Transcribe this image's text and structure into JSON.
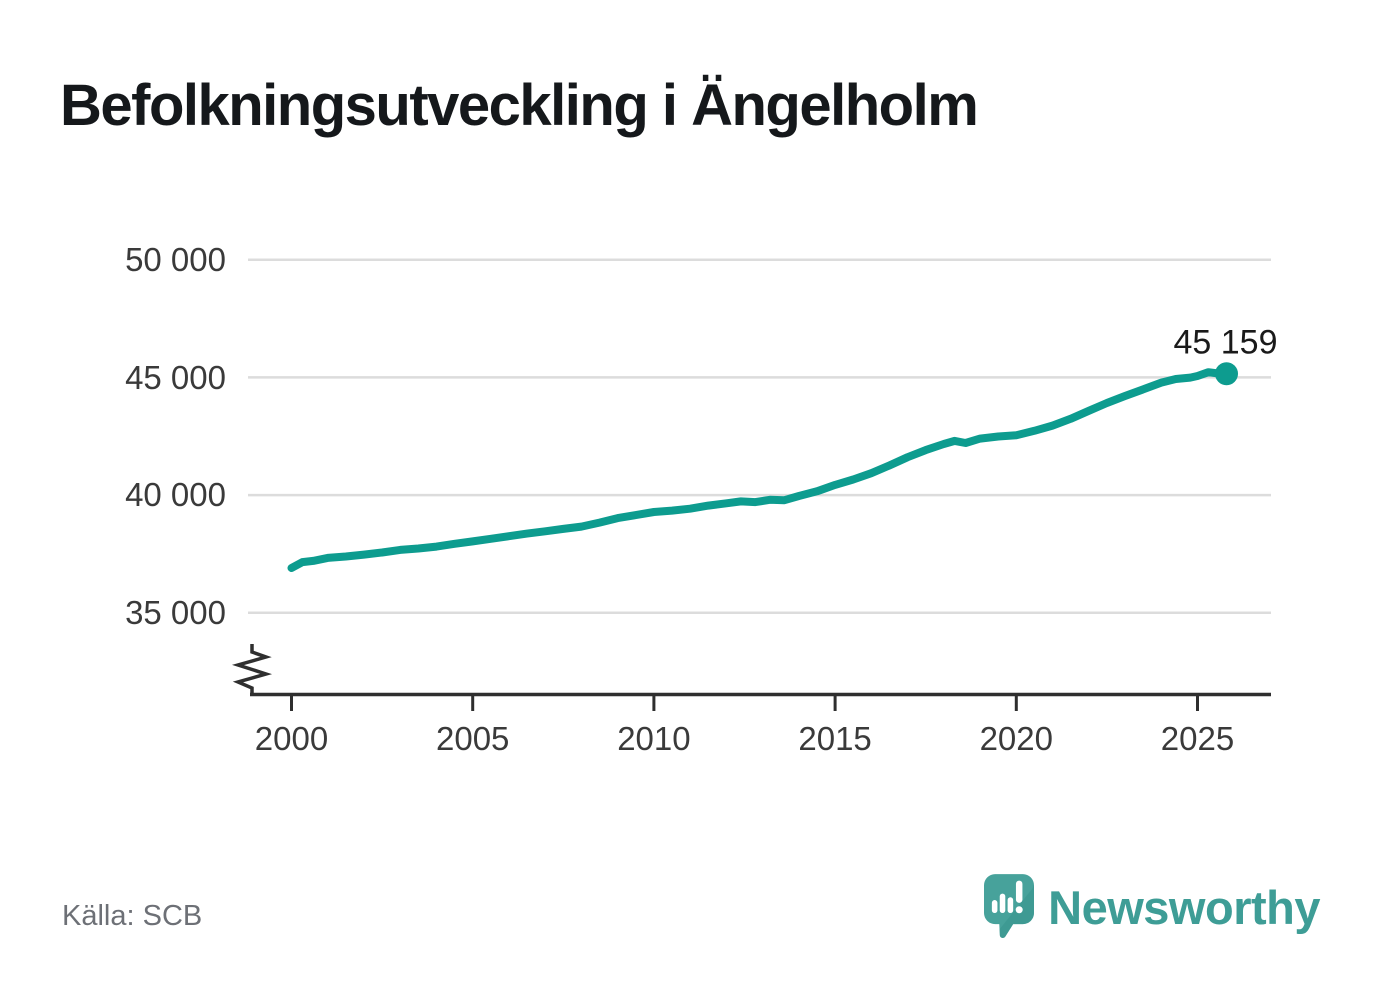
{
  "title": "Befolkningsutveckling i Ängelholm",
  "source": "Källa: SCB",
  "logo": {
    "text": "Newsworthy"
  },
  "colors": {
    "line": "#0d9c8f",
    "grid": "#dcdcdc",
    "axis": "#2f2f2f",
    "title_text": "#15181b",
    "tick_text": "#3a3a3a",
    "source_text": "#6d7076",
    "logo_teal": "#3e9d96",
    "logo_teal_dark": "#37948c"
  },
  "chart_data": {
    "type": "line",
    "title": "Befolkningsutveckling i Ängelholm",
    "xlabel": "",
    "ylabel": "",
    "xlim": [
      1999.3,
      2026.3
    ],
    "ylim": [
      35000,
      50000
    ],
    "axis_break_at_bottom": true,
    "grid": "horizontal",
    "legend": "none",
    "x_ticks": [
      {
        "year": 2000,
        "label": "2000"
      },
      {
        "year": 2005,
        "label": "2005"
      },
      {
        "year": 2010,
        "label": "2010"
      },
      {
        "year": 2015,
        "label": "2015"
      },
      {
        "year": 2020,
        "label": "2020"
      },
      {
        "year": 2025,
        "label": "2025"
      }
    ],
    "y_ticks": [
      {
        "value": 50000,
        "label": "50 000"
      },
      {
        "value": 45000,
        "label": "45 000"
      },
      {
        "value": 40000,
        "label": "40 000"
      },
      {
        "value": 35000,
        "label": "35 000"
      }
    ],
    "series": [
      {
        "name": "Befolkning Ängelholm",
        "points": [
          [
            2000.0,
            36900
          ],
          [
            2000.3,
            37150
          ],
          [
            2000.6,
            37200
          ],
          [
            2001.0,
            37330
          ],
          [
            2001.5,
            37390
          ],
          [
            2002.0,
            37470
          ],
          [
            2002.5,
            37560
          ],
          [
            2003.0,
            37670
          ],
          [
            2003.5,
            37730
          ],
          [
            2004.0,
            37810
          ],
          [
            2004.5,
            37930
          ],
          [
            2005.0,
            38030
          ],
          [
            2005.5,
            38140
          ],
          [
            2006.0,
            38250
          ],
          [
            2006.5,
            38360
          ],
          [
            2007.0,
            38460
          ],
          [
            2007.5,
            38560
          ],
          [
            2008.0,
            38660
          ],
          [
            2008.5,
            38830
          ],
          [
            2009.0,
            39020
          ],
          [
            2009.5,
            39150
          ],
          [
            2010.0,
            39280
          ],
          [
            2010.5,
            39340
          ],
          [
            2011.0,
            39420
          ],
          [
            2011.5,
            39550
          ],
          [
            2012.0,
            39650
          ],
          [
            2012.4,
            39730
          ],
          [
            2012.8,
            39700
          ],
          [
            2013.2,
            39800
          ],
          [
            2013.6,
            39780
          ],
          [
            2014.0,
            39960
          ],
          [
            2014.5,
            40160
          ],
          [
            2015.0,
            40430
          ],
          [
            2015.5,
            40660
          ],
          [
            2016.0,
            40930
          ],
          [
            2016.5,
            41260
          ],
          [
            2017.0,
            41610
          ],
          [
            2017.5,
            41910
          ],
          [
            2018.0,
            42170
          ],
          [
            2018.3,
            42300
          ],
          [
            2018.6,
            42210
          ],
          [
            2019.0,
            42400
          ],
          [
            2019.5,
            42490
          ],
          [
            2020.0,
            42540
          ],
          [
            2020.5,
            42730
          ],
          [
            2021.0,
            42950
          ],
          [
            2021.5,
            43240
          ],
          [
            2022.0,
            43580
          ],
          [
            2022.5,
            43910
          ],
          [
            2023.0,
            44210
          ],
          [
            2023.5,
            44490
          ],
          [
            2024.0,
            44780
          ],
          [
            2024.4,
            44930
          ],
          [
            2024.8,
            44990
          ],
          [
            2025.0,
            45060
          ],
          [
            2025.3,
            45220
          ],
          [
            2025.55,
            45170
          ],
          [
            2025.8,
            45159
          ]
        ]
      }
    ],
    "last_value": 45159,
    "last_point_label": "45 159"
  }
}
